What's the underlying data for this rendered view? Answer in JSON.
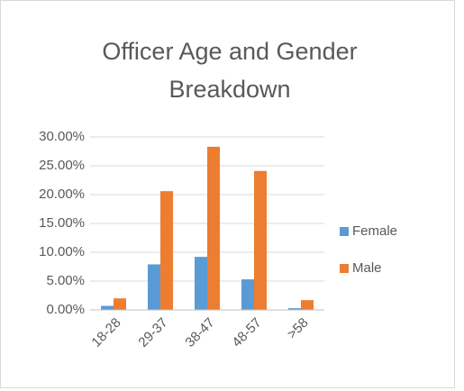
{
  "chart_data": {
    "type": "bar",
    "title": "Officer Age and Gender Breakdown",
    "categories": [
      "18-28",
      "29-37",
      "38-47",
      "48-57",
      ">58"
    ],
    "series": [
      {
        "name": "Female",
        "color": "#5b9bd5",
        "values": [
          0.7,
          7.9,
          9.2,
          5.3,
          0.3
        ]
      },
      {
        "name": "Male",
        "color": "#ed7d31",
        "values": [
          2.0,
          20.6,
          28.3,
          24.1,
          1.7
        ]
      }
    ],
    "ylim": [
      0,
      30
    ],
    "yticks": [
      {
        "value": 0,
        "label": "0.00%"
      },
      {
        "value": 5,
        "label": "5.00%"
      },
      {
        "value": 10,
        "label": "10.00%"
      },
      {
        "value": 15,
        "label": "15.00%"
      },
      {
        "value": 20,
        "label": "20.00%"
      },
      {
        "value": 25,
        "label": "25.00%"
      },
      {
        "value": 30,
        "label": "30.00%"
      }
    ],
    "grid": true,
    "legend": "right"
  }
}
